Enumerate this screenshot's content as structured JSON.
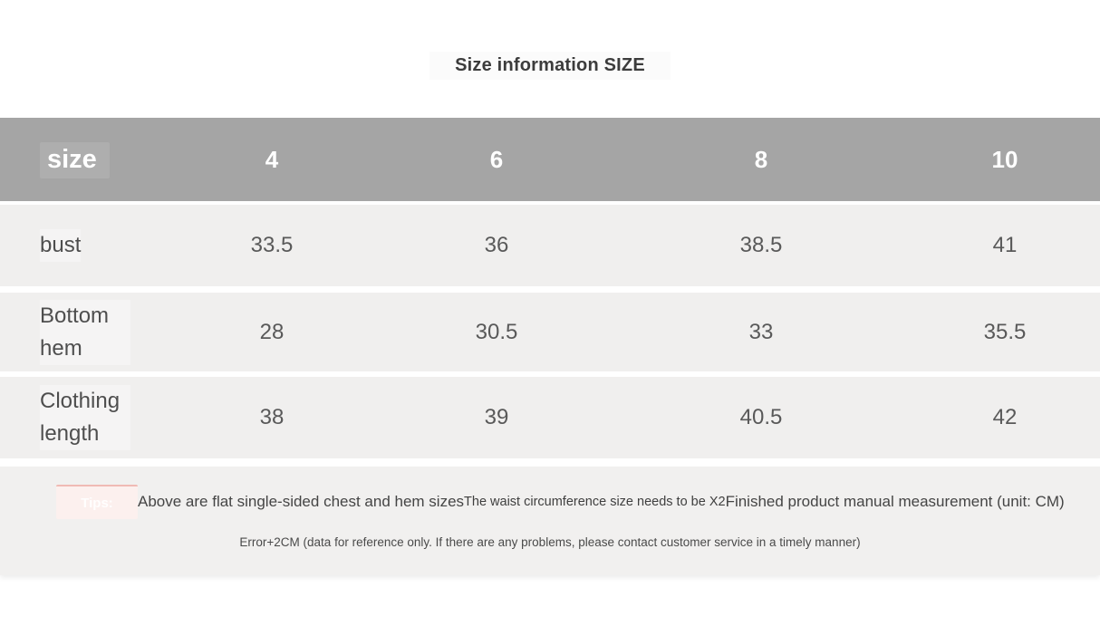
{
  "title": "Size information SIZE",
  "table": {
    "header": {
      "label": "size",
      "sizes": [
        "4",
        "6",
        "8",
        "10"
      ]
    },
    "rows": [
      {
        "label": "bust",
        "values": [
          "33.5",
          "36",
          "38.5",
          "41"
        ]
      },
      {
        "label": "Bottom hem",
        "values": [
          "28",
          "30.5",
          "33",
          "35.5"
        ]
      },
      {
        "label": "Clothing length",
        "values": [
          "38",
          "39",
          "40.5",
          "42"
        ]
      }
    ]
  },
  "footer": {
    "tips_label": "Tips:",
    "note_flat_sizes": "Above are flat single-sided chest and hem sizes",
    "note_waist": "The waist circumference size needs to be X2",
    "note_measurement": "Finished product manual measurement (unit: CM)",
    "note_error": "Error+2CM (data for reference only. If there are any problems, please contact customer service in a timely manner)"
  },
  "colors": {
    "header_bg": "#a5a5a5",
    "header_text": "#ffffff",
    "row_bg": "#f0efee",
    "tips_section_bg": "#f1f0ef",
    "tips_badge_bg": "#fcf0ee",
    "tips_badge_border": "#f0bab4",
    "text_dark": "#3c3c3c"
  }
}
